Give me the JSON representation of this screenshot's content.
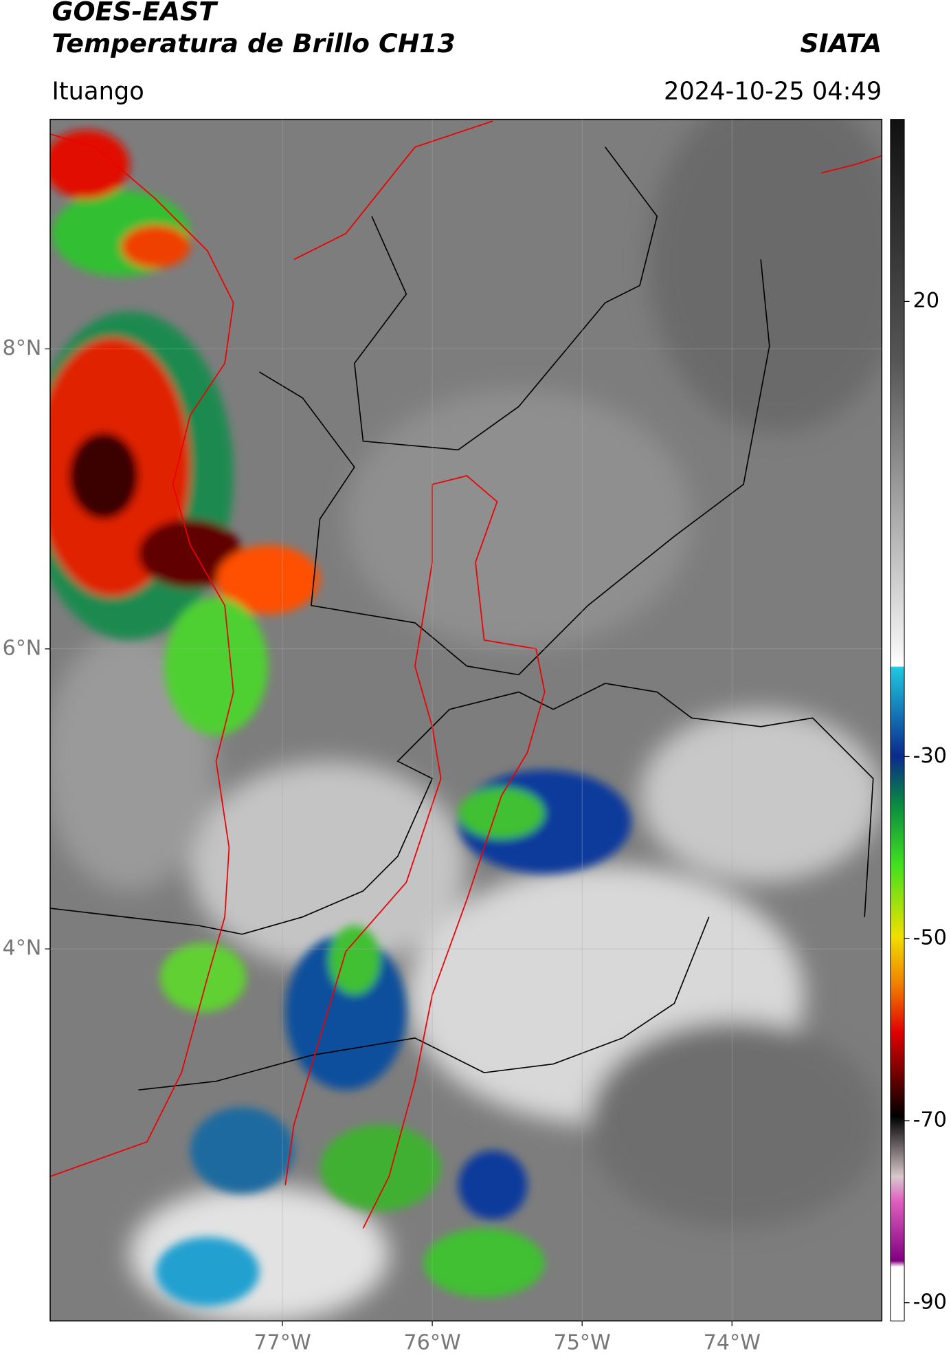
{
  "header": {
    "title": "GOES-EAST",
    "subtitle": "Temperatura de Brillo CH13",
    "source": "SIATA",
    "location": "Ituango",
    "datetime": "2024-10-25 04:49"
  },
  "map": {
    "xlim": [
      -78.55,
      -73.0
    ],
    "ylim": [
      1.52,
      9.53
    ],
    "xticks": [
      {
        "value": -77,
        "label": "77°W"
      },
      {
        "value": -76,
        "label": "76°W"
      },
      {
        "value": -75,
        "label": "75°W"
      },
      {
        "value": -74,
        "label": "74°W"
      }
    ],
    "yticks": [
      {
        "value": 4,
        "label": "4°N"
      },
      {
        "value": 6,
        "label": "6°N"
      },
      {
        "value": 8,
        "label": "8°N"
      }
    ],
    "grid": true
  },
  "colorbar": {
    "lim": [
      -92,
      40
    ],
    "ticks": [
      20,
      -30,
      -50,
      -70,
      -90
    ]
  }
}
